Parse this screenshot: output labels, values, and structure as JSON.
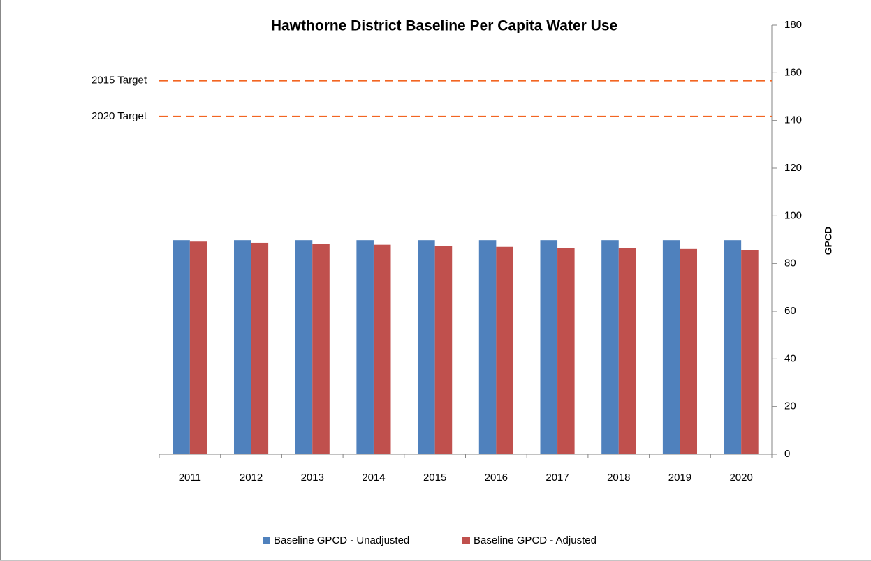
{
  "chart_data": {
    "type": "bar",
    "title": "Hawthorne District Baseline Per Capita Water Use",
    "y_axis_label": "GPCD",
    "categories": [
      "2011",
      "2012",
      "2013",
      "2014",
      "2015",
      "2016",
      "2017",
      "2018",
      "2019",
      "2020"
    ],
    "series": [
      {
        "name": "Baseline GPCD - Unadjusted",
        "color": "#4f81bd",
        "values": [
          89.8,
          89.8,
          89.8,
          89.8,
          89.8,
          89.8,
          89.8,
          89.8,
          89.8,
          89.8
        ]
      },
      {
        "name": "Baseline GPCD - Adjusted",
        "color": "#c0504d",
        "values": [
          89.2,
          88.7,
          88.3,
          87.9,
          87.4,
          87.0,
          86.6,
          86.5,
          86.1,
          85.6
        ]
      }
    ],
    "reference_lines": [
      {
        "label": "2015 Target",
        "value": 156.7,
        "color": "#f26522"
      },
      {
        "label": "2020 Target",
        "value": 141.7,
        "color": "#f26522"
      }
    ],
    "ylim": [
      0,
      180
    ],
    "yticks": [
      0,
      20,
      40,
      60,
      80,
      100,
      120,
      140,
      160,
      180
    ],
    "y_axis_side": "right",
    "legend": "bottom",
    "grid": false
  }
}
